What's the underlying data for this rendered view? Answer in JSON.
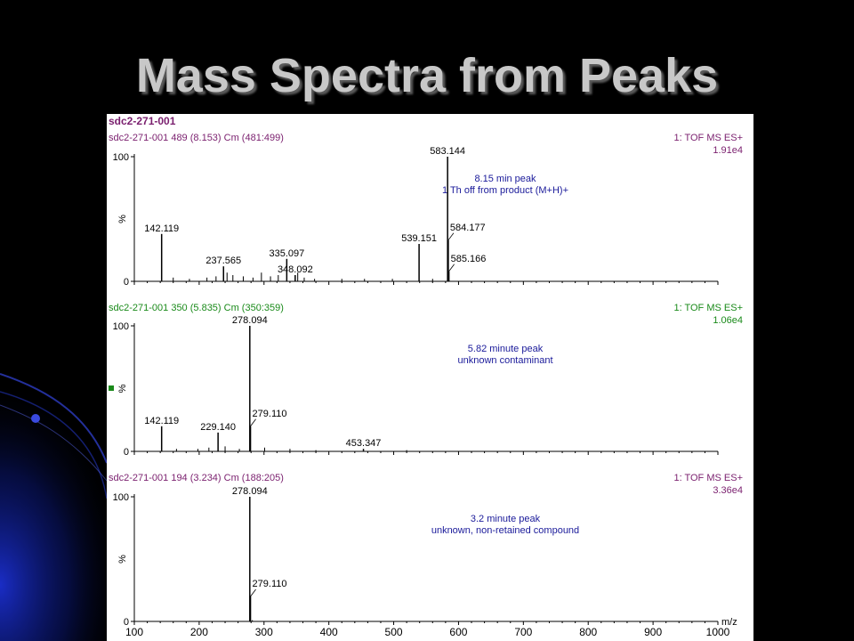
{
  "slide": {
    "title": "Mass Spectra from Peaks"
  },
  "colors": {
    "background": "#000000",
    "accent_blue": "#0a2aa8",
    "title_text": "#c8c8c8",
    "header_purple": "#7a1f6e",
    "header_green": "#1a8a1a",
    "annotation_blue": "#1a1a9a",
    "bullet_green": "#1a8a1a"
  },
  "file_id": "sdc2-271-001",
  "chart_data": [
    {
      "type": "bar",
      "header": "sdc2-271-001 489 (8.153) Cm (481:499)",
      "header_color": "purple",
      "mode": "1: TOF MS ES+",
      "intensity": "1.91e4",
      "annotation": [
        "8.15 min peak",
        "1 Th off from product (M+H)+"
      ],
      "ylabel": "%",
      "ylim": [
        0,
        100
      ],
      "yticks": [
        "0",
        "100"
      ],
      "xlim": [
        100,
        1000
      ],
      "peak_labels": [
        {
          "mz": 142.119,
          "label": "142.119",
          "value": 38
        },
        {
          "mz": 237.565,
          "label": "237.565",
          "value": 12
        },
        {
          "mz": 335.097,
          "label": "335.097",
          "value": 18
        },
        {
          "mz": 348.092,
          "label": "348.092",
          "value": 5
        },
        {
          "mz": 539.151,
          "label": "539.151",
          "value": 30
        },
        {
          "mz": 583.144,
          "label": "583.144",
          "value": 100
        },
        {
          "mz": 584.177,
          "label": "584.177",
          "value": 33
        },
        {
          "mz": 585.166,
          "label": "585.166",
          "value": 8
        }
      ],
      "minor_peaks": [
        {
          "mz": 160,
          "value": 3
        },
        {
          "mz": 185,
          "value": 2
        },
        {
          "mz": 212,
          "value": 3
        },
        {
          "mz": 226,
          "value": 4
        },
        {
          "mz": 243,
          "value": 7
        },
        {
          "mz": 252,
          "value": 5
        },
        {
          "mz": 268,
          "value": 4
        },
        {
          "mz": 283,
          "value": 3
        },
        {
          "mz": 296,
          "value": 7
        },
        {
          "mz": 310,
          "value": 4
        },
        {
          "mz": 322,
          "value": 5
        },
        {
          "mz": 352,
          "value": 7
        },
        {
          "mz": 362,
          "value": 3
        },
        {
          "mz": 378,
          "value": 2
        },
        {
          "mz": 420,
          "value": 2
        },
        {
          "mz": 455,
          "value": 2
        },
        {
          "mz": 498,
          "value": 2
        },
        {
          "mz": 560,
          "value": 2
        }
      ]
    },
    {
      "type": "bar",
      "header": "sdc2-271-001 350 (5.835) Cm (350:359)",
      "header_color": "green",
      "mode": "1: TOF MS ES+",
      "intensity": "1.06e4",
      "annotation": [
        "5.82 minute peak",
        "unknown contaminant"
      ],
      "ylabel": "%",
      "ylim": [
        0,
        100
      ],
      "yticks": [
        "0",
        "100"
      ],
      "xlim": [
        100,
        1000
      ],
      "peak_labels": [
        {
          "mz": 142.119,
          "label": "142.119",
          "value": 20
        },
        {
          "mz": 229.14,
          "label": "229.140",
          "value": 15
        },
        {
          "mz": 278.094,
          "label": "278.094",
          "value": 100
        },
        {
          "mz": 279.11,
          "label": "279.110",
          "value": 20
        },
        {
          "mz": 453.347,
          "label": "453.347",
          "value": 2
        }
      ],
      "minor_peaks": [
        {
          "mz": 165,
          "value": 2
        },
        {
          "mz": 198,
          "value": 2
        },
        {
          "mz": 215,
          "value": 3
        },
        {
          "mz": 240,
          "value": 4
        },
        {
          "mz": 262,
          "value": 2
        },
        {
          "mz": 301,
          "value": 3
        },
        {
          "mz": 340,
          "value": 2
        },
        {
          "mz": 380,
          "value": 1
        },
        {
          "mz": 520,
          "value": 1
        }
      ]
    },
    {
      "type": "bar",
      "header": "sdc2-271-001 194 (3.234) Cm (188:205)",
      "header_color": "purple",
      "mode": "1: TOF MS ES+",
      "intensity": "3.36e4",
      "annotation": [
        "3.2 minute peak",
        "unknown, non-retained compound"
      ],
      "ylabel": "%",
      "ylim": [
        0,
        100
      ],
      "yticks": [
        "0",
        "100"
      ],
      "xlim": [
        100,
        1000
      ],
      "xlabel": "m/z",
      "xticks": [
        "100",
        "200",
        "300",
        "400",
        "500",
        "600",
        "700",
        "800",
        "900",
        "1000"
      ],
      "peak_labels": [
        {
          "mz": 278.094,
          "label": "278.094",
          "value": 100
        },
        {
          "mz": 279.11,
          "label": "279.110",
          "value": 20
        }
      ],
      "minor_peaks": [
        {
          "mz": 282,
          "value": 1
        }
      ]
    }
  ]
}
